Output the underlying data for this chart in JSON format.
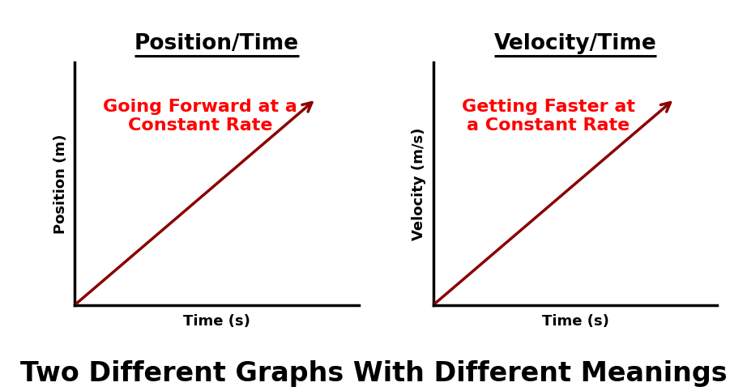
{
  "background_color": "#ffffff",
  "title1": "Position/Time",
  "title2": "Velocity/Time",
  "ylabel1": "Position (m)",
  "ylabel2": "Velocity (m/s)",
  "xlabel1": "Time (s)",
  "xlabel2": "Time (s)",
  "annotation1": "Going Forward at a\nConstant Rate",
  "annotation2": "Getting Faster at\na Constant Rate",
  "footer": "Two Different Graphs With Different Meanings",
  "line_color": "#8B0000",
  "text_color": "#000000",
  "annotation_color": "#FF0000",
  "title_fontsize": 19,
  "ylabel_fontsize": 13,
  "xlabel_fontsize": 13,
  "annotation_fontsize": 16,
  "footer_fontsize": 24,
  "spine_lw": 2.5
}
